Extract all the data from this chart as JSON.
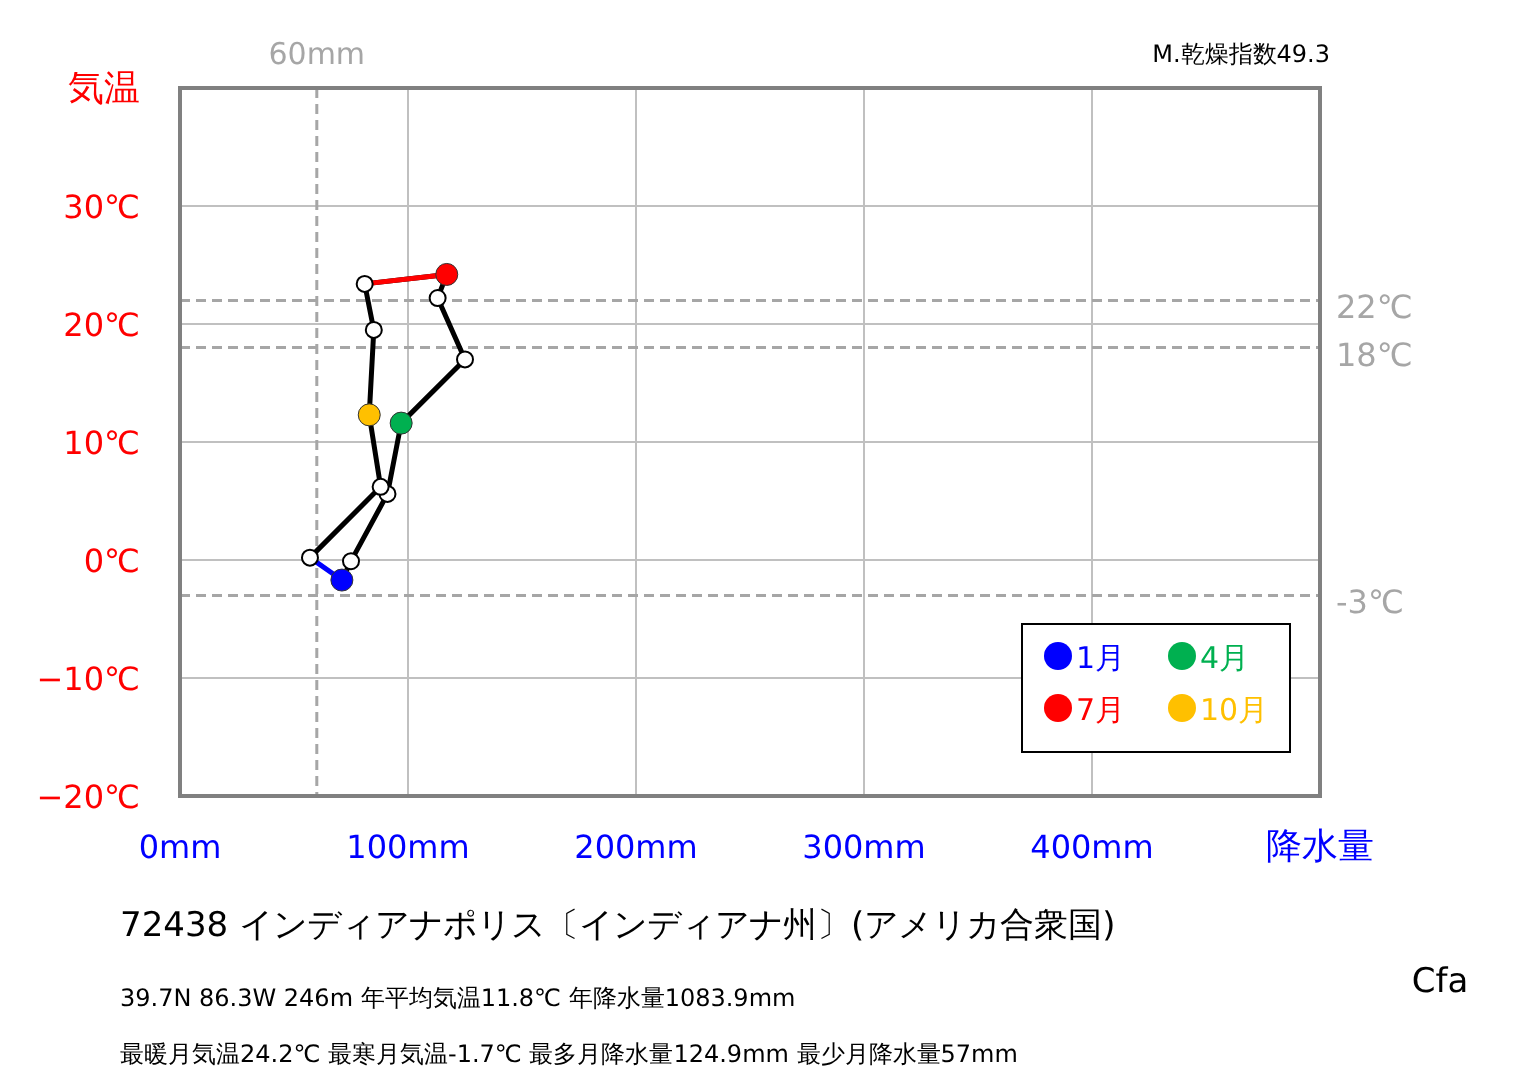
{
  "chart_data": {
    "type": "line",
    "title": "72438  インディアナポリス〔インディアナ州〕(アメリカ合衆国)",
    "ylabel": "気温",
    "xlabel": "降水量",
    "annotations": [
      "39.7N  86.3W 246m  年平均気温11.8℃ 年降水量1083.9mm",
      "最暖月気温24.2℃ 最寒月気温-1.7℃ 最多月降水量124.9mm 最少月降水量57mm",
      "Cfa",
      "M.乾燥指数49.3"
    ],
    "xlim": [
      0,
      500
    ],
    "ylim": [
      -20,
      40
    ],
    "xticks": [
      {
        "value": 0,
        "label": "0mm"
      },
      {
        "value": 100,
        "label": "100mm"
      },
      {
        "value": 200,
        "label": "200mm"
      },
      {
        "value": 300,
        "label": "300mm"
      },
      {
        "value": 400,
        "label": "400mm"
      },
      {
        "value": 500,
        "label": null
      }
    ],
    "yticks": [
      {
        "value": -20,
        "label": "−20℃"
      },
      {
        "value": -10,
        "label": "−10℃"
      },
      {
        "value": 0,
        "label": "0℃"
      },
      {
        "value": 10,
        "label": "10℃"
      },
      {
        "value": 20,
        "label": "20℃"
      },
      {
        "value": 30,
        "label": "30℃"
      },
      {
        "value": 40,
        "label": null
      }
    ],
    "grid": true,
    "legend": "bottom right",
    "ref_lines": [
      {
        "axis": "x",
        "value": 60,
        "label": "60mm",
        "color": "#a6a6a6",
        "line_style": "dashed"
      },
      {
        "axis": "y",
        "value": 22,
        "label": "22℃",
        "color": "#a6a6a6",
        "line_style": "dashed"
      },
      {
        "axis": "y",
        "value": 18,
        "label": "18℃",
        "color": "#a6a6a6",
        "line_style": "dashed"
      },
      {
        "axis": "y",
        "value": -3,
        "label": "-3℃",
        "color": "#a6a6a6",
        "line_style": "dashed"
      }
    ],
    "series": [
      {
        "color": "#000000",
        "marker": "circle",
        "x": [
          71,
          75,
          91,
          97,
          125,
          113,
          117,
          81,
          85,
          83,
          88,
          57
        ],
        "values": [
          -1.7,
          -0.1,
          5.6,
          11.6,
          17.0,
          22.2,
          24.2,
          23.4,
          19.5,
          12.3,
          6.2,
          0.2
        ]
      },
      {
        "color": "#0000ff",
        "x": [
          57,
          71
        ],
        "values": [
          0.2,
          -1.7
        ]
      },
      {
        "color": "#ff0000",
        "x": [
          117,
          81
        ],
        "values": [
          24.2,
          23.4
        ]
      },
      {
        "type": "scatter",
        "name": "1月",
        "color": "#0000ff",
        "x": [
          71
        ],
        "values": [
          -1.7
        ]
      },
      {
        "type": "scatter",
        "name": "4月",
        "color": "#00b050",
        "x": [
          97
        ],
        "values": [
          11.6
        ]
      },
      {
        "type": "scatter",
        "name": "7月",
        "color": "#ff0000",
        "x": [
          117
        ],
        "values": [
          24.2
        ]
      },
      {
        "type": "scatter",
        "name": "10月",
        "color": "#ffc000",
        "x": [
          83
        ],
        "values": [
          12.3
        ]
      }
    ]
  }
}
